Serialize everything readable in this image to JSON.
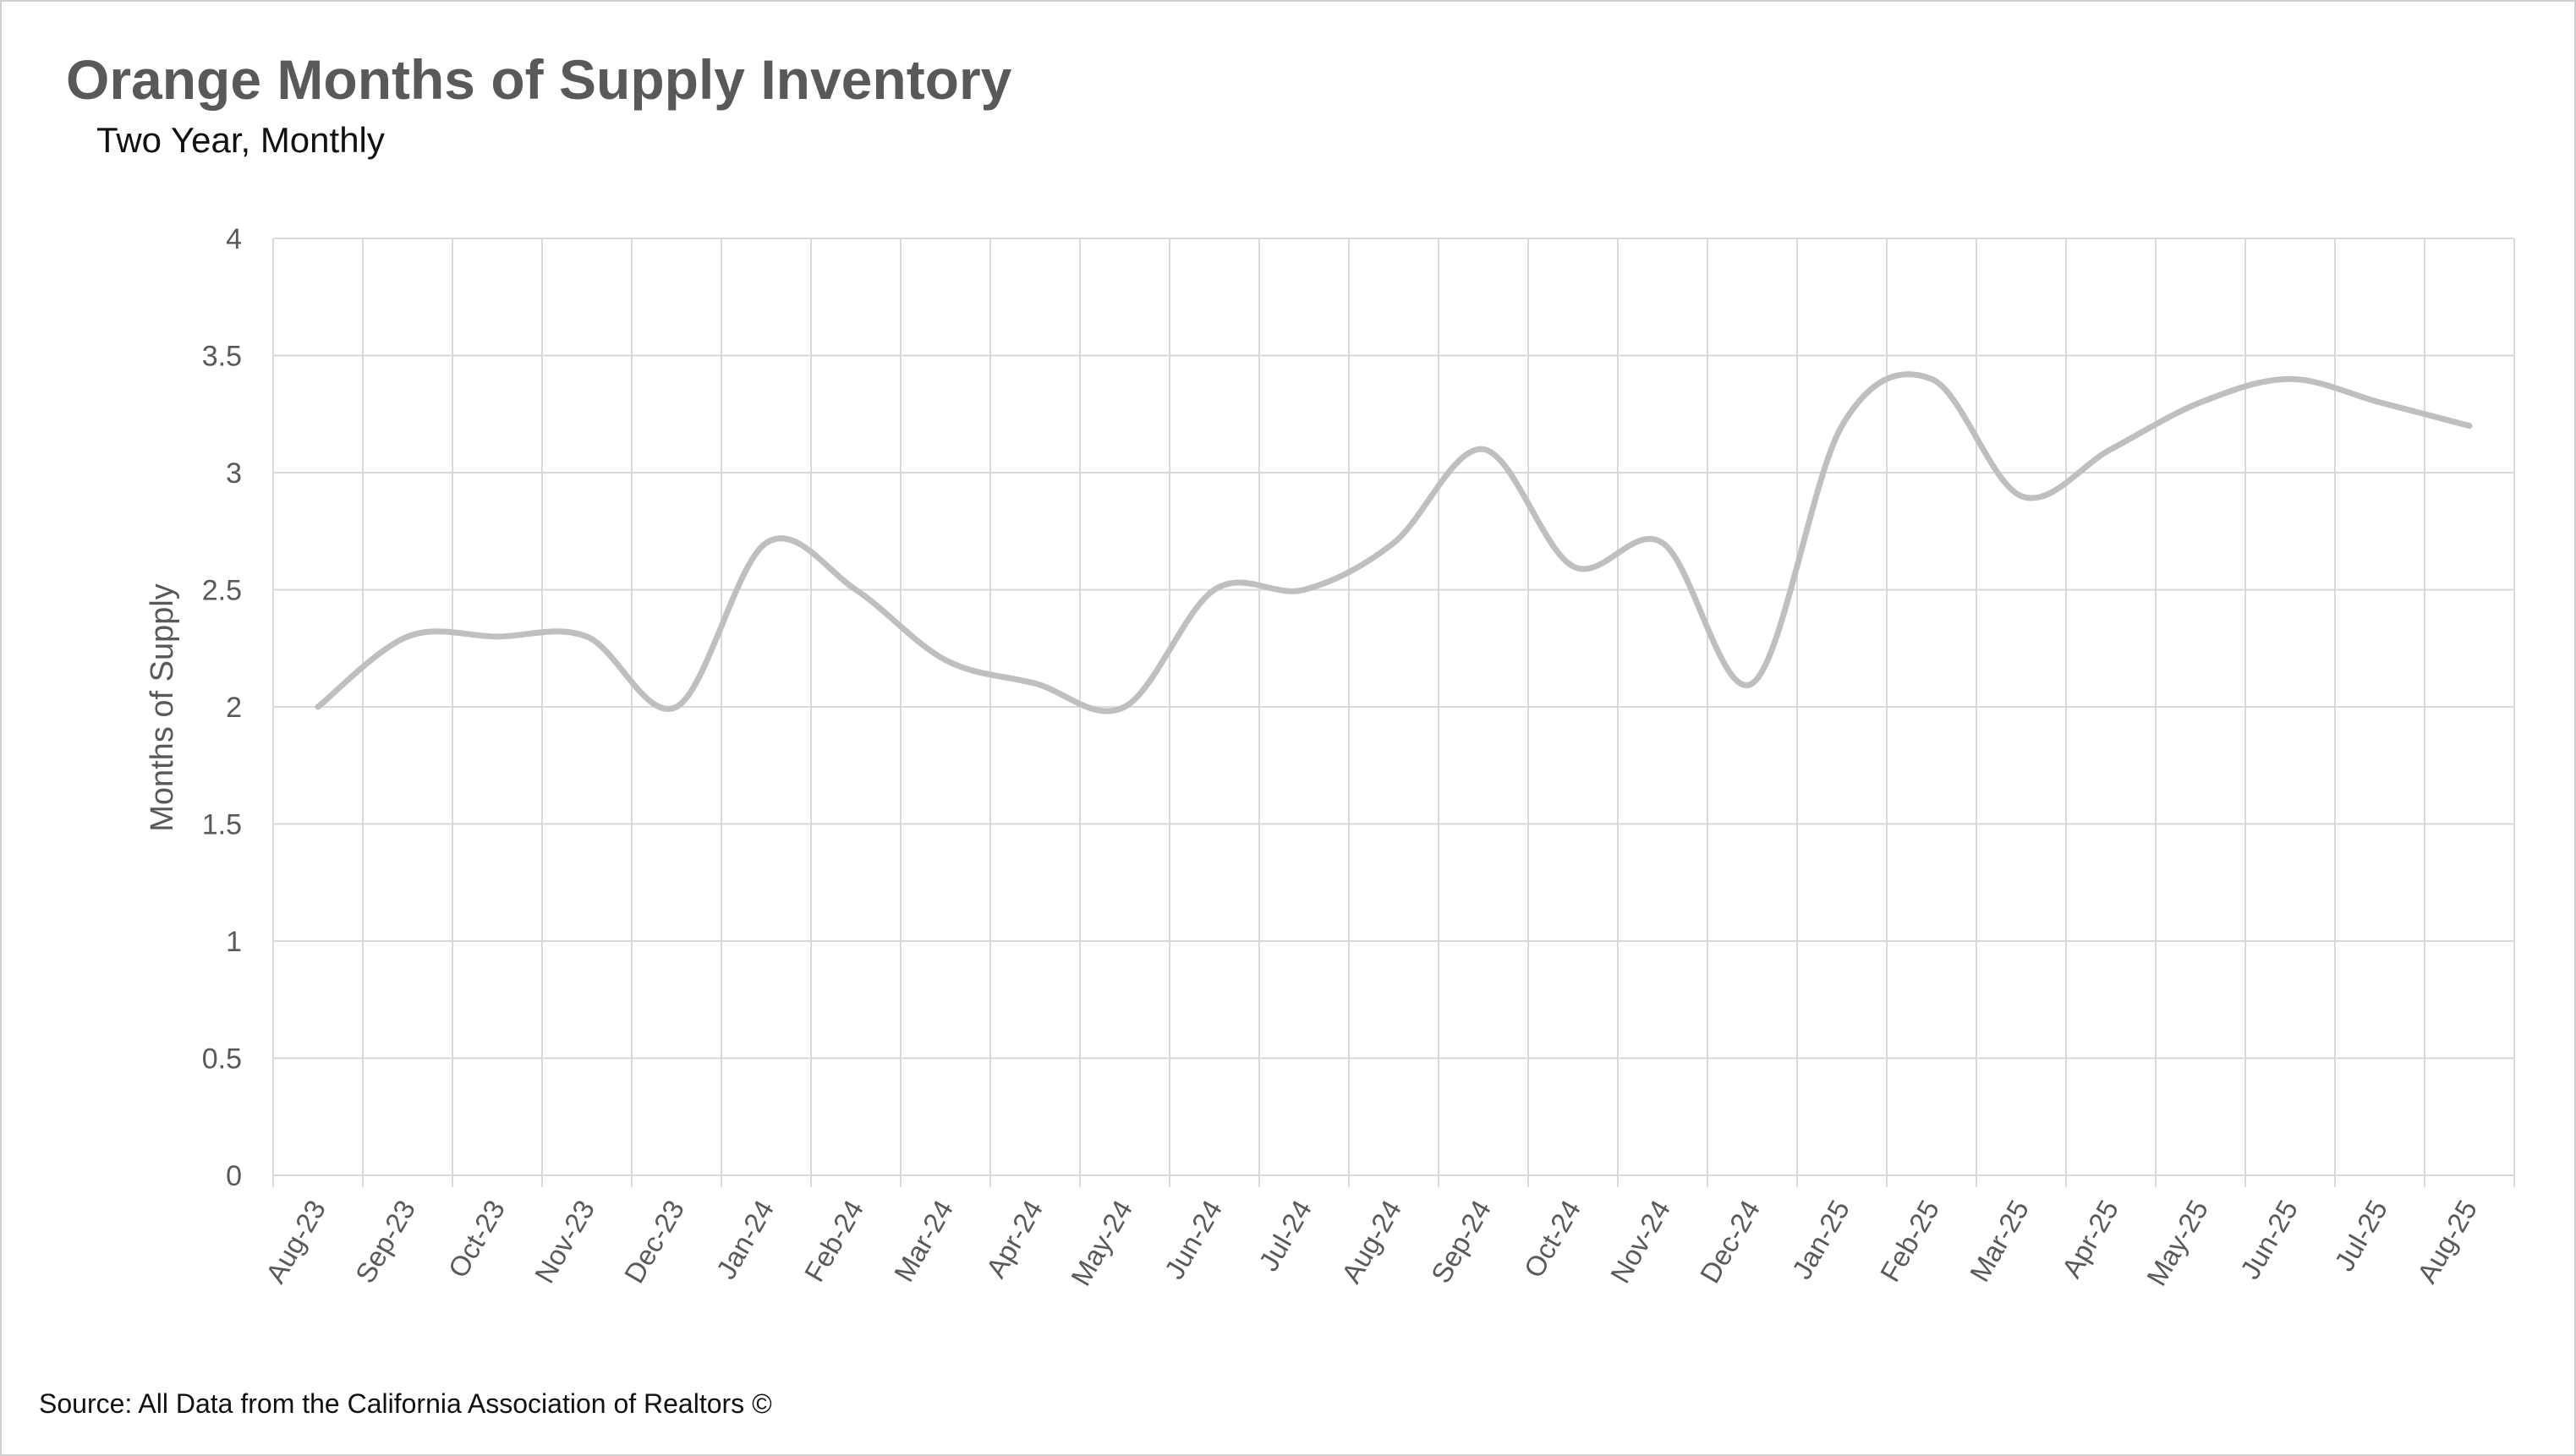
{
  "chart_data": {
    "type": "line",
    "title": "Orange Months of Supply Inventory",
    "subtitle": "Two Year, Monthly",
    "ylabel": "Months of Supply",
    "xlabel": "",
    "ylim": [
      0,
      4
    ],
    "yticks": [
      "0",
      "0.5",
      "1",
      "1.5",
      "2",
      "2.5",
      "3",
      "3.5",
      "4"
    ],
    "grid": true,
    "categories": [
      "Aug-23",
      "Sep-23",
      "Oct-23",
      "Nov-23",
      "Dec-23",
      "Jan-24",
      "Feb-24",
      "Mar-24",
      "Apr-24",
      "May-24",
      "Jun-24",
      "Jul-24",
      "Aug-24",
      "Sep-24",
      "Oct-24",
      "Nov-24",
      "Dec-24",
      "Jan-25",
      "Feb-25",
      "Mar-25",
      "Apr-25",
      "May-25",
      "Jun-25",
      "Jul-25",
      "Aug-25"
    ],
    "series": [
      {
        "color": "#bfbfbf",
        "values": [
          2.0,
          2.3,
          2.3,
          2.3,
          2.0,
          2.7,
          2.5,
          2.2,
          2.1,
          2.0,
          2.5,
          2.5,
          2.7,
          3.1,
          2.6,
          2.7,
          2.1,
          3.2,
          3.4,
          2.9,
          3.1,
          3.3,
          3.4,
          3.3,
          3.2
        ]
      }
    ]
  },
  "footer": {
    "source": "Source: All Data from the California Association of Realtors ©"
  }
}
